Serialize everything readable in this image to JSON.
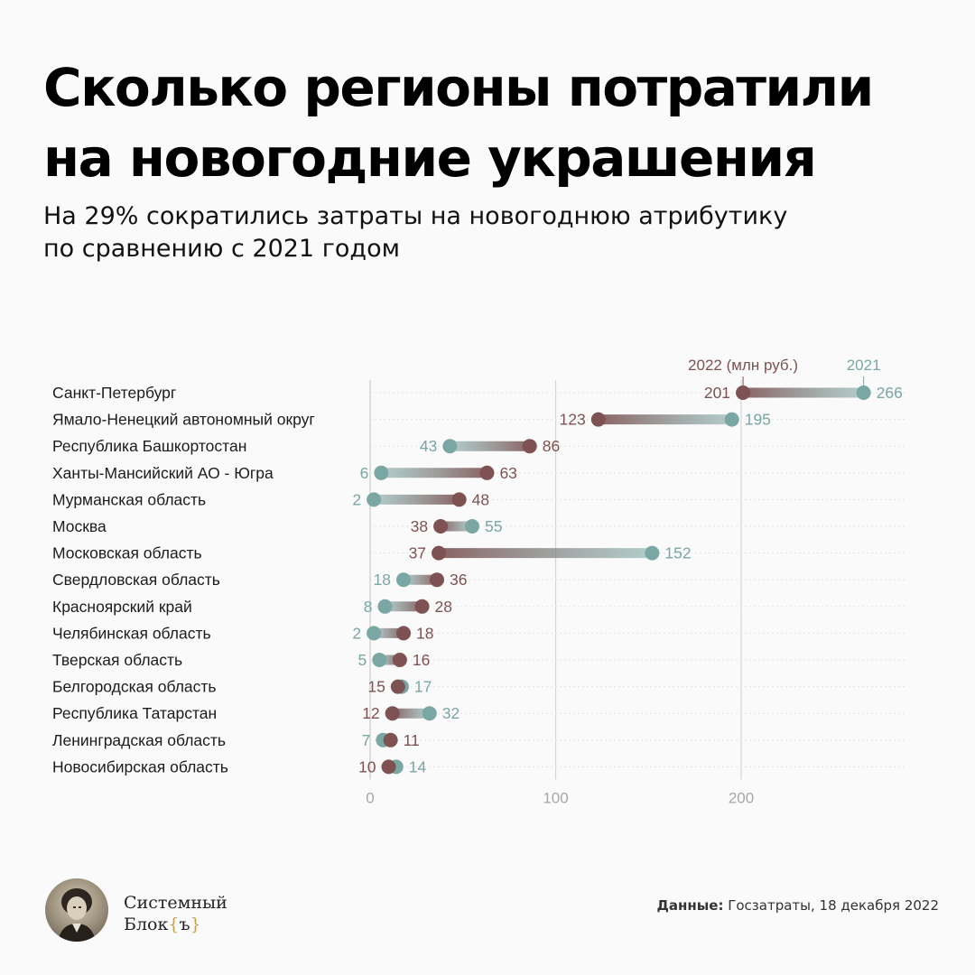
{
  "title_lines": [
    "Сколько регионы потратили",
    "на новогодние украшения"
  ],
  "subtitle_lines": [
    "На 29% сократились затраты на новогоднюю атрибутику",
    "по сравнению с 2021 годом"
  ],
  "colors": {
    "y2022": "#7e5252",
    "y2021": "#7aa6a4",
    "grid": "#dcdcdc"
  },
  "chart_data": {
    "type": "dumbbell",
    "legend": {
      "y2022": "2022 (млн руб.)",
      "y2021": "2021"
    },
    "categories": [
      "Санкт-Петербург",
      "Ямало-Ненецкий автономный округ",
      "Республика Башкортостан",
      "Ханты-Мансийский АО - Югра",
      "Мурманская область",
      "Москва",
      "Московская область",
      "Свердловская область",
      "Красноярский край",
      "Челябинская область",
      "Тверская область",
      "Белгородская область",
      "Республика Татарстан",
      "Ленинградская область",
      "Новосибирская область"
    ],
    "series": [
      {
        "name": "2022 (млн руб.)",
        "key": "y2022",
        "values": [
          201,
          123,
          86,
          63,
          48,
          38,
          37,
          36,
          28,
          18,
          16,
          15,
          12,
          11,
          10
        ]
      },
      {
        "name": "2021",
        "key": "y2021",
        "values": [
          266,
          195,
          43,
          6,
          2,
          55,
          152,
          18,
          8,
          2,
          5,
          17,
          32,
          7,
          14
        ]
      }
    ],
    "x_ticks": [
      0,
      100,
      200
    ],
    "xlim": [
      0,
      290
    ]
  },
  "footer": {
    "brand_line1": "Системный",
    "brand_line2": "Блок",
    "brand_brace_open": "{",
    "brand_brace_letter": "ъ",
    "brand_brace_close": "}",
    "source_label": "Данные:",
    "source_text": "Госзатраты, 18 декабря 2022"
  }
}
